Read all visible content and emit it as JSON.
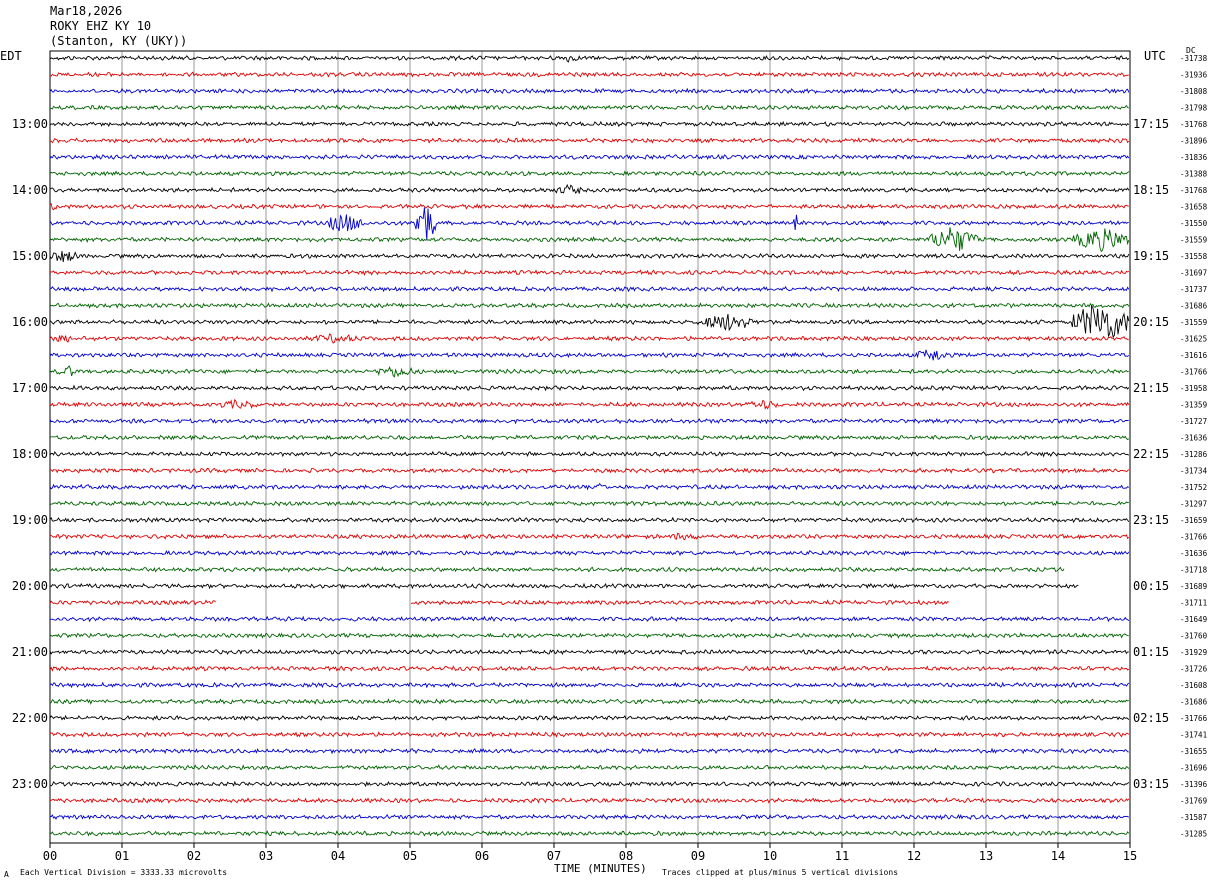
{
  "header": {
    "date": "Mar18,2026",
    "station": "ROKY EHZ KY 10",
    "location": "(Stanton, KY (UKY))"
  },
  "left_tz": "EDT",
  "right_tz": "UTC",
  "dc_label": "DC",
  "footer": {
    "scale_note": "Each Vertical Division = 3333.33 microvolts",
    "clip_note": "Traces clipped at plus/minus 5 vertical divisions",
    "corner_mark": "A"
  },
  "chart_data": {
    "type": "line",
    "title": "ROKY EHZ KY 10",
    "xlabel": "TIME (MINUTES)",
    "xlim": [
      0,
      15
    ],
    "x_ticks": [
      "00",
      "01",
      "02",
      "03",
      "04",
      "05",
      "06",
      "07",
      "08",
      "09",
      "10",
      "11",
      "12",
      "13",
      "14",
      "15"
    ],
    "trace_count": 48,
    "minutes_per_trace": 15,
    "trace_colors": [
      "#000000",
      "#e00000",
      "#0000d0",
      "#006400"
    ],
    "left_hour_labels": [
      "13:00",
      "14:00",
      "15:00",
      "16:00",
      "17:00",
      "18:00",
      "19:00",
      "20:00",
      "21:00",
      "22:00",
      "23:00"
    ],
    "right_hour_labels": [
      "17:15",
      "18:15",
      "19:15",
      "20:15",
      "21:15",
      "22:15",
      "23:15",
      "00:15",
      "01:15",
      "02:15",
      "03:15"
    ],
    "dc_offsets": [
      "-31738",
      "-31936",
      "-31808",
      "-31798",
      "-31768",
      "-31896",
      "-31836",
      "-31388",
      "-31768",
      "-31658",
      "-31550",
      "-31559",
      "-31558",
      "-31697",
      "-31737",
      "-31686",
      "-31559",
      "-31625",
      "-31616",
      "-31766",
      "-31958",
      "-31359",
      "-31727",
      "-31636",
      "-31286",
      "-31734",
      "-31752",
      "-31297",
      "-31659",
      "-31766",
      "-31636",
      "-31718",
      "-31689",
      "-31711",
      "-31649",
      "-31760",
      "-31929",
      "-31726",
      "-31608",
      "-31686",
      "-31766",
      "-31741",
      "-31655",
      "-31696",
      "-31396",
      "-31769",
      "-31587",
      "-31285"
    ],
    "events": [
      {
        "trace": 0,
        "start_min": 7.0,
        "end_min": 7.4,
        "amp": 4
      },
      {
        "trace": 9,
        "start_min": 0.0,
        "end_min": 0.1,
        "amp": 4
      },
      {
        "trace": 10,
        "start_min": 3.8,
        "end_min": 4.4,
        "amp": 10
      },
      {
        "trace": 10,
        "start_min": 5.05,
        "end_min": 5.35,
        "amp": 24
      },
      {
        "trace": 10,
        "start_min": 10.33,
        "end_min": 10.38,
        "amp": 12
      },
      {
        "trace": 8,
        "start_min": 7.0,
        "end_min": 7.4,
        "amp": 6
      },
      {
        "trace": 11,
        "start_min": 12.2,
        "end_min": 12.9,
        "amp": 14
      },
      {
        "trace": 11,
        "start_min": 14.2,
        "end_min": 15.0,
        "amp": 12
      },
      {
        "trace": 12,
        "start_min": 0.0,
        "end_min": 0.4,
        "amp": 7
      },
      {
        "trace": 16,
        "start_min": 9.0,
        "end_min": 9.8,
        "amp": 9
      },
      {
        "trace": 16,
        "start_min": 14.2,
        "end_min": 15.0,
        "amp": 22
      },
      {
        "trace": 17,
        "start_min": 0.0,
        "end_min": 0.3,
        "amp": 6
      },
      {
        "trace": 17,
        "start_min": 3.6,
        "end_min": 4.3,
        "amp": 5
      },
      {
        "trace": 18,
        "start_min": 12.0,
        "end_min": 12.5,
        "amp": 7
      },
      {
        "trace": 19,
        "start_min": 0.1,
        "end_min": 0.4,
        "amp": 6
      },
      {
        "trace": 19,
        "start_min": 4.5,
        "end_min": 5.1,
        "amp": 6
      },
      {
        "trace": 21,
        "start_min": 2.3,
        "end_min": 2.9,
        "amp": 5
      },
      {
        "trace": 21,
        "start_min": 9.6,
        "end_min": 10.2,
        "amp": 5
      },
      {
        "trace": 26,
        "start_min": 7.6,
        "end_min": 7.7,
        "amp": 5
      },
      {
        "trace": 29,
        "start_min": 8.5,
        "end_min": 9.1,
        "amp": 4
      }
    ],
    "gaps": [
      {
        "trace": 31,
        "start_min": 14.1,
        "end_min": 15.0
      },
      {
        "trace": 32,
        "start_min": 14.3,
        "end_min": 15.0
      },
      {
        "trace": 33,
        "start_min": 2.3,
        "end_min": 5.0
      },
      {
        "trace": 33,
        "start_min": 12.5,
        "end_min": 15.0
      }
    ]
  }
}
